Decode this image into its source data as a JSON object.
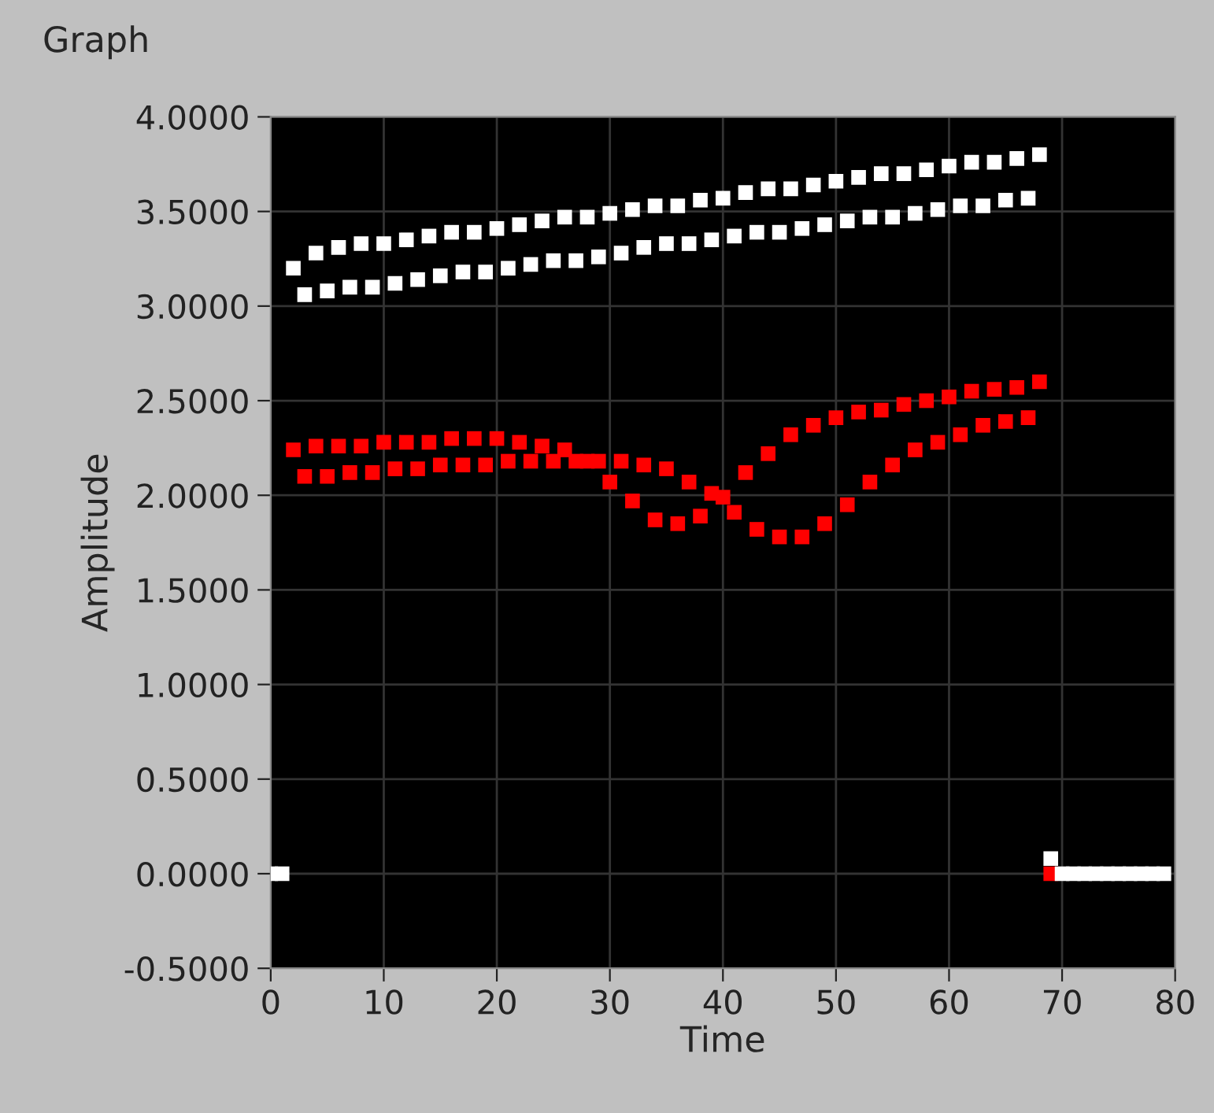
{
  "chart_data": {
    "type": "scatter",
    "title": "Graph",
    "xlabel": "Time",
    "ylabel": "Amplitude",
    "marker": "square",
    "grid": true,
    "legend": false,
    "xlim": [
      0,
      80
    ],
    "xticks": [
      0,
      10,
      20,
      30,
      40,
      50,
      60,
      70,
      80
    ],
    "ylim": [
      -0.5,
      4.0
    ],
    "yticks": [
      {
        "value": -0.5,
        "label": "-0.5000"
      },
      {
        "value": 0,
        "label": "0.0000"
      },
      {
        "value": 0.5,
        "label": "0.5000"
      },
      {
        "value": 1,
        "label": "1.0000"
      },
      {
        "value": 1.5,
        "label": "1.5000"
      },
      {
        "value": 2,
        "label": "2.0000"
      },
      {
        "value": 2.5,
        "label": "2.5000"
      },
      {
        "value": 3,
        "label": "3.0000"
      },
      {
        "value": 3.5,
        "label": "3.5000"
      },
      {
        "value": 4,
        "label": "4.0000"
      }
    ],
    "series": [
      {
        "color": "#ffffff",
        "x": [
          2,
          4,
          6,
          8,
          10,
          12,
          14,
          16,
          18,
          20,
          22,
          24,
          26,
          28,
          30,
          32,
          34,
          36,
          38,
          40,
          42,
          44,
          46,
          48,
          50,
          52,
          54,
          56,
          58,
          60,
          62,
          64,
          66,
          68
        ],
        "values": [
          3.2,
          3.28,
          3.31,
          3.33,
          3.33,
          3.35,
          3.37,
          3.39,
          3.39,
          3.41,
          3.43,
          3.45,
          3.47,
          3.47,
          3.49,
          3.51,
          3.53,
          3.53,
          3.56,
          3.57,
          3.6,
          3.62,
          3.62,
          3.64,
          3.66,
          3.68,
          3.7,
          3.7,
          3.72,
          3.74,
          3.76,
          3.76,
          3.78,
          3.8
        ]
      },
      {
        "color": "#ffffff",
        "x": [
          3,
          5,
          7,
          9,
          11,
          13,
          15,
          17,
          19,
          21,
          23,
          25,
          27,
          29,
          31,
          33,
          35,
          37,
          39,
          41,
          43,
          45,
          47,
          49,
          51,
          53,
          55,
          57,
          59,
          61,
          63,
          65,
          67
        ],
        "values": [
          3.06,
          3.08,
          3.1,
          3.1,
          3.12,
          3.14,
          3.16,
          3.18,
          3.18,
          3.2,
          3.22,
          3.24,
          3.24,
          3.26,
          3.28,
          3.31,
          3.33,
          3.33,
          3.35,
          3.37,
          3.39,
          3.39,
          3.41,
          3.43,
          3.45,
          3.47,
          3.47,
          3.49,
          3.51,
          3.53,
          3.53,
          3.56,
          3.57
        ]
      },
      {
        "color": "#ff0000",
        "x": [
          2,
          4,
          6,
          8,
          10,
          12,
          14,
          16,
          18,
          20,
          22,
          24,
          26,
          28,
          30,
          32,
          34,
          36,
          38,
          40,
          42,
          44,
          46,
          48,
          50,
          52,
          54,
          56,
          58,
          60,
          62,
          64,
          66,
          68
        ],
        "values": [
          2.24,
          2.26,
          2.26,
          2.26,
          2.28,
          2.28,
          2.28,
          2.3,
          2.3,
          2.3,
          2.28,
          2.26,
          2.24,
          2.18,
          2.07,
          1.97,
          1.87,
          1.85,
          1.89,
          1.99,
          2.12,
          2.22,
          2.32,
          2.37,
          2.41,
          2.44,
          2.45,
          2.48,
          2.5,
          2.52,
          2.55,
          2.56,
          2.57,
          2.6
        ]
      },
      {
        "color": "#ff0000",
        "x": [
          3,
          5,
          7,
          9,
          11,
          13,
          15,
          17,
          19,
          21,
          23,
          25,
          27,
          29,
          31,
          33,
          35,
          37,
          39,
          41,
          43,
          45,
          47,
          49,
          51,
          53,
          55,
          57,
          59,
          61,
          63,
          65,
          67
        ],
        "values": [
          2.1,
          2.1,
          2.12,
          2.12,
          2.14,
          2.14,
          2.16,
          2.16,
          2.16,
          2.18,
          2.18,
          2.18,
          2.18,
          2.18,
          2.18,
          2.16,
          2.14,
          2.07,
          2.01,
          1.91,
          1.82,
          1.78,
          1.78,
          1.85,
          1.95,
          2.07,
          2.16,
          2.24,
          2.28,
          2.32,
          2.37,
          2.39,
          2.41
        ]
      },
      {
        "color": "#ff0000",
        "x": [
          69
        ],
        "values": [
          0
        ]
      },
      {
        "color": "#ffffff",
        "x": [
          0,
          1,
          69,
          70,
          71,
          72,
          73,
          74,
          75,
          76,
          77,
          78,
          79
        ],
        "values": [
          0,
          0,
          0.08,
          0,
          0,
          0,
          0,
          0,
          0,
          0,
          0,
          0,
          0
        ]
      }
    ]
  }
}
